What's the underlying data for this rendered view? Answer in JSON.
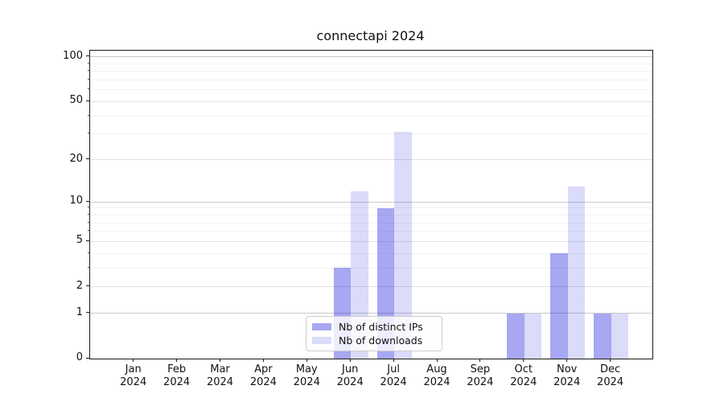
{
  "title": "connectapi 2024",
  "chart_data": {
    "type": "bar",
    "title": "connectapi 2024",
    "categories": [
      "Jan 2024",
      "Feb 2024",
      "Mar 2024",
      "Apr 2024",
      "May 2024",
      "Jun 2024",
      "Jul 2024",
      "Aug 2024",
      "Sep 2024",
      "Oct 2024",
      "Nov 2024",
      "Dec 2024"
    ],
    "series": [
      {
        "name": "Nb of distinct IPs",
        "color": "#0A0ADC5C",
        "values": [
          0,
          0,
          0,
          0,
          0,
          3,
          9,
          0,
          0,
          1,
          4,
          1
        ]
      },
      {
        "name": "Nb of downloads",
        "color": "#0A0ADC25",
        "values": [
          0,
          0,
          0,
          0,
          0,
          12,
          31,
          0,
          0,
          1,
          13,
          1
        ]
      }
    ],
    "xlabel": "",
    "ylabel": "",
    "yscale": "log1p",
    "ylim": [
      0,
      110
    ],
    "yticks": [
      0,
      1,
      2,
      5,
      10,
      20,
      50,
      100
    ],
    "yticks_minor": [
      3,
      4,
      6,
      7,
      8,
      9,
      30,
      40,
      60,
      70,
      80,
      90
    ],
    "grid": true,
    "legend_position": "lower center inside plot"
  }
}
